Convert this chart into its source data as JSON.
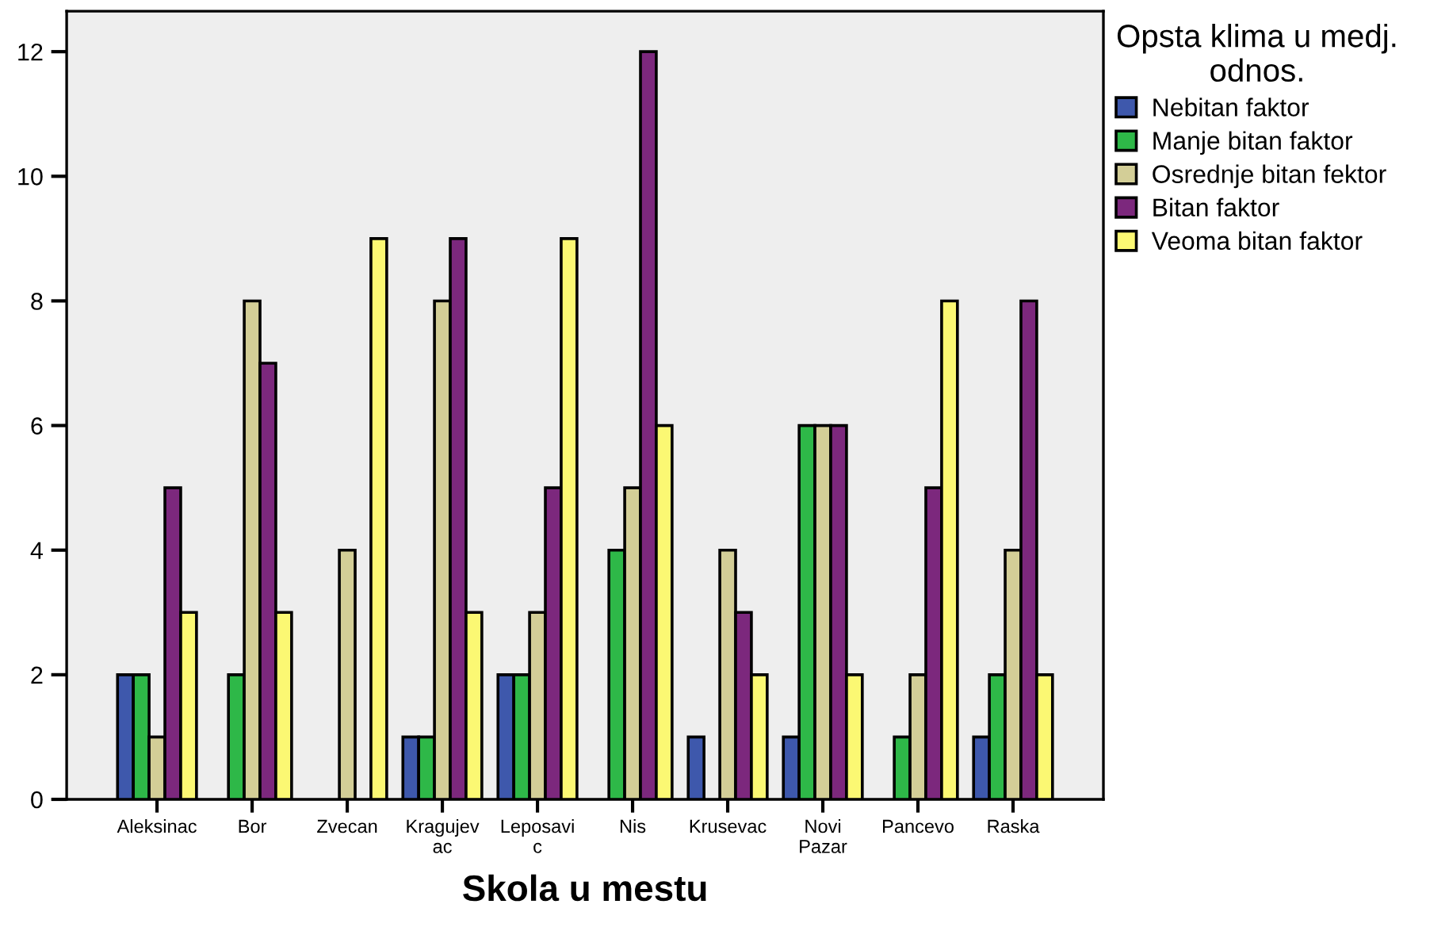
{
  "chart_data": {
    "type": "bar",
    "xlabel": "Skola u mestu",
    "legend_title": "Opsta klima u medj.\nodnos.",
    "categories": [
      "Aleksinac",
      "Bor",
      "Zvecan",
      "Kragujev\nac",
      "Leposavi\nc",
      "Nis",
      "Krusevac",
      "Novi\nPazar",
      "Pancevo",
      "Raska"
    ],
    "series": [
      {
        "name": "Nebitan faktor",
        "color": "#3e58ac",
        "values": [
          2,
          null,
          null,
          1,
          2,
          null,
          1,
          1,
          null,
          1
        ]
      },
      {
        "name": "Manje bitan faktor",
        "color": "#2eb848",
        "values": [
          2,
          2,
          null,
          1,
          2,
          4,
          null,
          6,
          1,
          2
        ]
      },
      {
        "name": "Osrednje bitan fektor",
        "color": "#d3ce97",
        "values": [
          1,
          8,
          4,
          8,
          3,
          5,
          4,
          6,
          2,
          4
        ]
      },
      {
        "name": "Bitan faktor",
        "color": "#7c287d",
        "values": [
          5,
          7,
          null,
          9,
          5,
          12,
          3,
          6,
          5,
          8
        ]
      },
      {
        "name": "Veoma bitan faktor",
        "color": "#fbf873",
        "values": [
          3,
          3,
          9,
          3,
          9,
          6,
          2,
          2,
          8,
          2
        ]
      }
    ],
    "ylim": [
      0,
      12.65
    ],
    "yticks": [
      0,
      2,
      4,
      6,
      8,
      10,
      12
    ],
    "grid": false,
    "legend": "top right"
  }
}
